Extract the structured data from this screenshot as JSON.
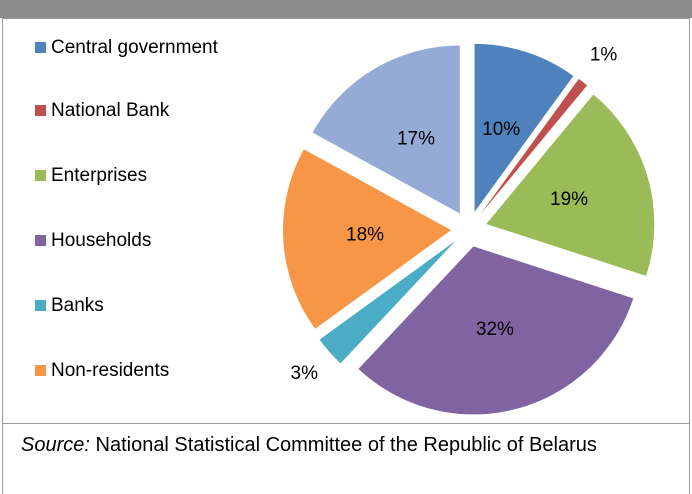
{
  "chart_data": {
    "type": "pie",
    "categories": [
      "Central government",
      "National Bank",
      "Enterprises",
      "Households",
      "Banks",
      "Non-residents",
      null
    ],
    "values": [
      10,
      1,
      19,
      32,
      3,
      18,
      17
    ],
    "value_labels": [
      "10%",
      "1%",
      "19%",
      "32%",
      "3%",
      "18%",
      "17%"
    ],
    "colors": [
      "#4f81bd",
      "#c0504d",
      "#9bbb59",
      "#8064a2",
      "#4bacc6",
      "#f79646",
      "#95abd5"
    ],
    "legend": "left"
  },
  "source": {
    "label": "Source:",
    "text": "National Statistical Committee of the Republic of Belarus"
  }
}
